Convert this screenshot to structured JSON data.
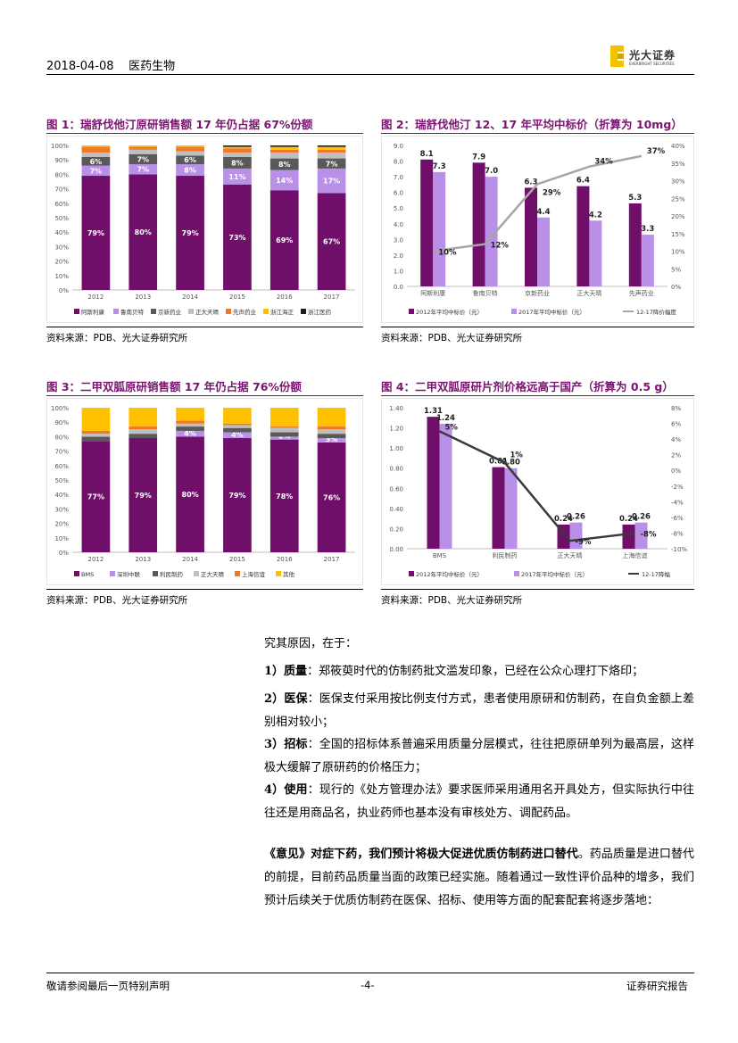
{
  "header": {
    "date": "2018-04-08",
    "section": "医药生物",
    "logo_text": "光大证券",
    "logo_sub": "EVERBRIGHT SECURITIES"
  },
  "colors": {
    "accent": "#7a1470",
    "purple_dark": "#700f6a",
    "purple_light": "#b98fe8",
    "gray": "#595959",
    "orange": "#f0782d",
    "yellow": "#ffc000",
    "black": "#1f1f1f"
  },
  "figures": [
    {
      "title": "图 1：瑞舒伐他汀原研销售额 17 年仍占据 67%份额",
      "source": "资料来源：PDB、光大证券研究所"
    },
    {
      "title": "图 2：瑞舒伐他汀 12、17 年平均中标价（折算为 10mg）",
      "source": "资料来源：PDB、光大证券研究所"
    },
    {
      "title": "图 3：二甲双胍原研销售额 17 年仍占据 76%份额",
      "source": "资料来源：PDB、光大证券研究所"
    },
    {
      "title": "图 4：二甲双胍原研片剂价格远高于国产（折算为 0.5 g）",
      "source": "资料来源：PDB、光大证券研究所"
    }
  ],
  "chart_data": [
    {
      "type": "bar",
      "stacked": true,
      "percent": true,
      "categories": [
        "2012",
        "2013",
        "2014",
        "2015",
        "2016",
        "2017"
      ],
      "yticks": [
        "0%",
        "10%",
        "20%",
        "30%",
        "40%",
        "50%",
        "60%",
        "70%",
        "80%",
        "90%",
        "100%"
      ],
      "series": [
        {
          "name": "阿斯利康",
          "color": "#700f6a",
          "values": [
            79,
            80,
            79,
            73,
            69,
            67
          ],
          "labels": [
            "79%",
            "80%",
            "79%",
            "73%",
            "69%",
            "67%"
          ]
        },
        {
          "name": "鲁南贝特",
          "color": "#b98fe8",
          "values": [
            7,
            7,
            8,
            11,
            14,
            17
          ],
          "labels": [
            "7%",
            "7%",
            "8%",
            "11%",
            "14%",
            "17%"
          ]
        },
        {
          "name": "京新药业",
          "color": "#595959",
          "values": [
            6,
            7,
            6,
            8,
            8,
            7
          ],
          "labels": [
            "6%",
            "7%",
            "6%",
            "8%",
            "8%",
            "7%"
          ]
        },
        {
          "name": "正大天晴",
          "color": "#bfbfbf",
          "values": [
            3,
            3,
            3,
            3,
            4,
            4
          ],
          "labels": [
            "",
            "",
            "",
            "",
            "",
            ""
          ]
        },
        {
          "name": "先声药业",
          "color": "#f0782d",
          "values": [
            4,
            2,
            3,
            3,
            2,
            2
          ],
          "labels": [
            "",
            "",
            "",
            "",
            "",
            ""
          ]
        },
        {
          "name": "浙江海正",
          "color": "#ffc000",
          "values": [
            1,
            1,
            1,
            1,
            2,
            2
          ],
          "labels": [
            "",
            "",
            "",
            "",
            "",
            ""
          ]
        },
        {
          "name": "浙江医药",
          "color": "#1f1f1f",
          "values": [
            0,
            0,
            0,
            1,
            1,
            1
          ],
          "labels": [
            "",
            "",
            "",
            "",
            "",
            ""
          ]
        }
      ]
    },
    {
      "type": "bar",
      "categories": [
        "阿斯利康",
        "鲁南贝特",
        "京新药业",
        "正大天晴",
        "先声药业"
      ],
      "yticks_left": [
        "0.0",
        "1.0",
        "2.0",
        "3.0",
        "4.0",
        "5.0",
        "6.0",
        "7.0",
        "8.0",
        "9.0"
      ],
      "yticks_right": [
        "0%",
        "5%",
        "10%",
        "15%",
        "20%",
        "25%",
        "30%",
        "35%",
        "40%"
      ],
      "ylim": [
        0,
        9
      ],
      "y2lim": [
        0,
        40
      ],
      "series": [
        {
          "name": "2012年平均中标价（元）",
          "color": "#700f6a",
          "values": [
            8.1,
            7.9,
            6.3,
            6.4,
            5.3
          ],
          "labels": [
            "8.1",
            "7.9",
            "6.3",
            "6.4",
            "5.3"
          ]
        },
        {
          "name": "2017年平均中标价（元）",
          "color": "#b98fe8",
          "values": [
            7.3,
            7.0,
            4.4,
            4.2,
            3.3
          ],
          "labels": [
            "7.3",
            "7.0",
            "4.4",
            "4.2",
            "3.3"
          ]
        }
      ],
      "line": {
        "name": "12-17降价幅度",
        "color": "#a6a6a6",
        "values": [
          10,
          12,
          29,
          34,
          37
        ],
        "labels": [
          "10%",
          "12%",
          "29%",
          "34%",
          "37%"
        ]
      }
    },
    {
      "type": "bar",
      "stacked": true,
      "percent": true,
      "categories": [
        "2012",
        "2013",
        "2014",
        "2015",
        "2016",
        "2017"
      ],
      "yticks": [
        "0%",
        "10%",
        "20%",
        "30%",
        "40%",
        "50%",
        "60%",
        "70%",
        "80%",
        "90%",
        "100%"
      ],
      "series": [
        {
          "name": "BMS",
          "color": "#700f6a",
          "values": [
            77,
            79,
            80,
            79,
            78,
            76
          ],
          "labels": [
            "77%",
            "79%",
            "80%",
            "79%",
            "78%",
            "76%"
          ]
        },
        {
          "name": "深圳中联",
          "color": "#b98fe8",
          "values": [
            0,
            0,
            4,
            4,
            2,
            3
          ],
          "labels": [
            "0%",
            "0%",
            "4%",
            "4%",
            "2%",
            "3%"
          ]
        },
        {
          "name": "利民制药",
          "color": "#595959",
          "values": [
            3,
            3,
            3,
            3,
            3,
            3
          ],
          "labels": [
            "",
            "",
            "",
            "",
            "",
            ""
          ]
        },
        {
          "name": "正大天晴",
          "color": "#bfbfbf",
          "values": [
            2,
            3,
            2,
            2,
            3,
            3
          ],
          "labels": [
            "",
            "",
            "",
            "",
            "",
            ""
          ]
        },
        {
          "name": "上海信谊",
          "color": "#f0782d",
          "values": [
            2,
            2,
            2,
            1,
            1,
            2
          ],
          "labels": [
            "",
            "",
            "",
            "",
            "",
            ""
          ]
        },
        {
          "name": "其他",
          "color": "#ffc000",
          "values": [
            16,
            13,
            9,
            11,
            13,
            13
          ],
          "labels": [
            "",
            "",
            "",
            "",
            "",
            ""
          ]
        }
      ]
    },
    {
      "type": "bar",
      "categories": [
        "BMS",
        "利民制药",
        "正大天晴",
        "上海信谊"
      ],
      "yticks_left": [
        "0.00",
        "0.20",
        "0.40",
        "0.60",
        "0.80",
        "1.00",
        "1.20",
        "1.40"
      ],
      "yticks_right": [
        "-10%",
        "-8%",
        "-6%",
        "-4%",
        "-2%",
        "0%",
        "2%",
        "4%",
        "6%",
        "8%"
      ],
      "ylim": [
        0,
        1.4
      ],
      "y2lim": [
        -10,
        8
      ],
      "series": [
        {
          "name": "2012年平均中标价（元）",
          "color": "#700f6a",
          "values": [
            1.31,
            0.81,
            0.24,
            0.24
          ],
          "labels": [
            "1.31",
            "0.81",
            "0.24",
            "0.24"
          ]
        },
        {
          "name": "2017年平均中标价（元）",
          "color": "#b98fe8",
          "values": [
            1.24,
            0.8,
            0.26,
            0.26
          ],
          "labels": [
            "1.24",
            "0.80",
            "0.26",
            "0.26"
          ]
        }
      ],
      "line": {
        "name": "12-17降幅",
        "color": "#3a3a3a",
        "values": [
          5,
          1,
          -9,
          -8
        ],
        "labels": [
          "5%",
          "1%",
          "-9%",
          "-8%"
        ]
      }
    }
  ],
  "body": {
    "intro": "究其原因，在于：",
    "points": [
      {
        "num": "1）",
        "key": "质量",
        "text": "：郑筱萸时代的仿制药批文滥发印象，已经在公众心理打下烙印；"
      },
      {
        "num": "2）",
        "key": "医保",
        "text": "：医保支付采用按比例支付方式，患者使用原研和仿制药，在自负金额上差别相对较小；"
      },
      {
        "num": "3）",
        "key": "招标",
        "text": "：全国的招标体系普遍采用质量分层模式，往往把原研单列为最高层，这样极大缓解了原研药的价格压力；"
      },
      {
        "num": "4）",
        "key": "使用",
        "text": "：现行的《处方管理办法》要求医师采用通用名开具处方，但实际执行中往往还是用商品名，执业药师也基本没有审核处方、调配药品。"
      }
    ],
    "conclusion_bold": "《意见》对症下药，我们预计将极大促进优质仿制药进口替代",
    "conclusion": "。药品质量是进口替代的前提，目前药品质量当面的政策已经实施。随着通过一致性评价品种的增多，我们预计后续关于优质仿制药在医保、招标、使用等方面的配套配套将逐步落地："
  },
  "footer": {
    "left": "敬请参阅最后一页特别声明",
    "center": "-4-",
    "right": "证券研究报告"
  }
}
